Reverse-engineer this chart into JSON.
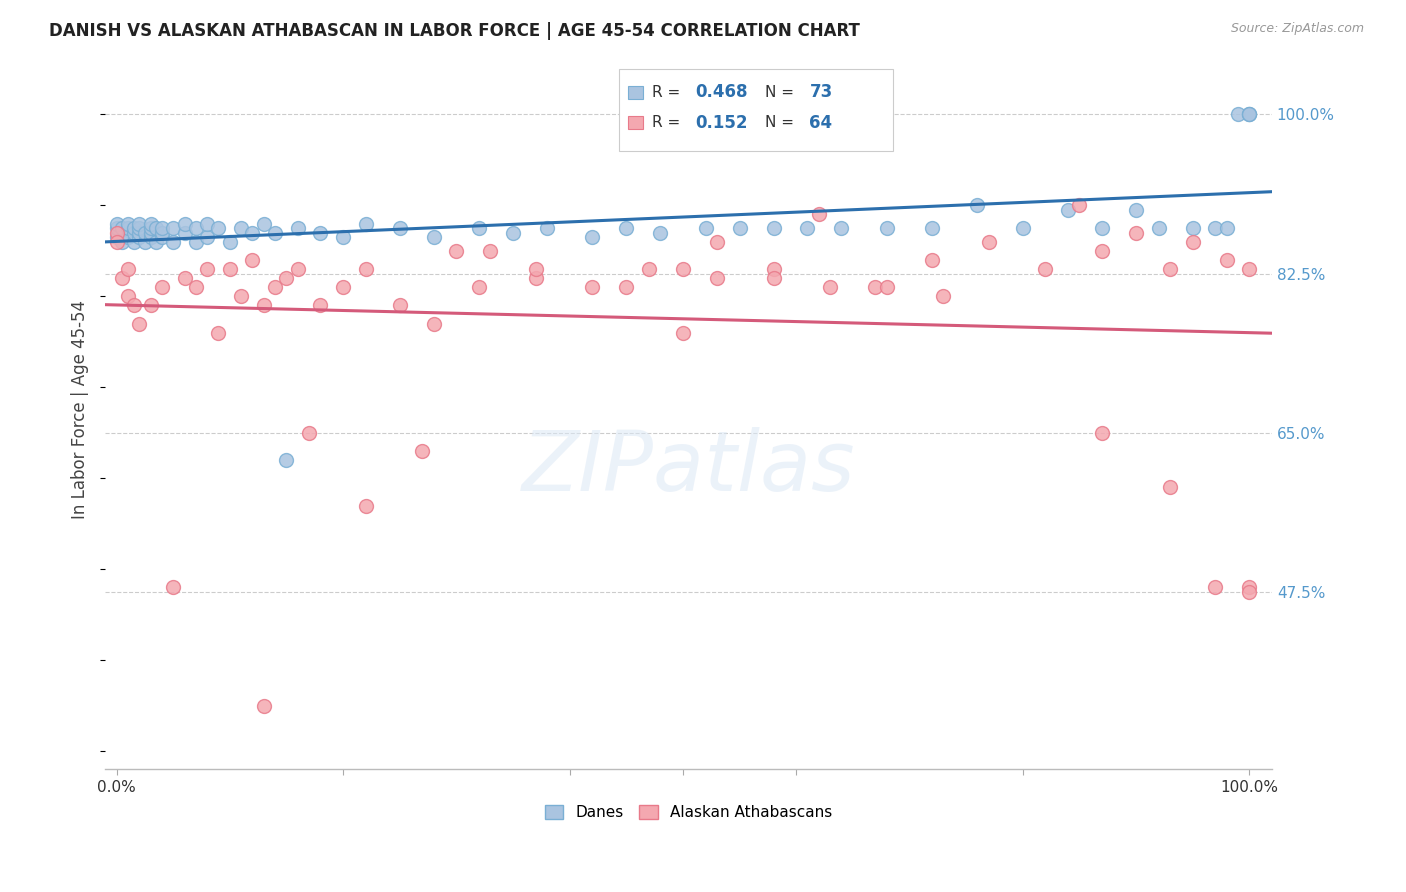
{
  "title": "DANISH VS ALASKAN ATHABASCAN IN LABOR FORCE | AGE 45-54 CORRELATION CHART",
  "source_text": "Source: ZipAtlas.com",
  "ylabel": "In Labor Force | Age 45-54",
  "xlim": [
    -0.01,
    1.02
  ],
  "ylim": [
    0.28,
    1.07
  ],
  "yticks": [
    0.475,
    0.65,
    0.825,
    1.0
  ],
  "ytick_labels": [
    "47.5%",
    "65.0%",
    "82.5%",
    "100.0%"
  ],
  "legend_r_blue": "0.468",
  "legend_n_blue": "73",
  "legend_r_pink": "0.152",
  "legend_n_pink": "64",
  "blue_color": "#aac4e0",
  "blue_edge": "#7aafd4",
  "pink_color": "#f4a8b0",
  "pink_edge": "#e87a8a",
  "trend_blue": "#2c6fad",
  "trend_pink": "#d45a7a",
  "watermark": "ZIPatlas",
  "danes_x": [
    0.0,
    0.0,
    0.0,
    0.005,
    0.005,
    0.01,
    0.01,
    0.01,
    0.015,
    0.015,
    0.015,
    0.02,
    0.02,
    0.02,
    0.02,
    0.025,
    0.025,
    0.03,
    0.03,
    0.03,
    0.03,
    0.035,
    0.035,
    0.04,
    0.04,
    0.04,
    0.05,
    0.05,
    0.06,
    0.06,
    0.07,
    0.07,
    0.08,
    0.08,
    0.09,
    0.1,
    0.11,
    0.12,
    0.13,
    0.14,
    0.15,
    0.16,
    0.18,
    0.2,
    0.22,
    0.25,
    0.28,
    0.32,
    0.35,
    0.38,
    0.42,
    0.45,
    0.48,
    0.52,
    0.55,
    0.58,
    0.61,
    0.64,
    0.68,
    0.72,
    0.76,
    0.8,
    0.84,
    0.87,
    0.9,
    0.92,
    0.95,
    0.97,
    0.98,
    0.99,
    1.0,
    1.0,
    1.0
  ],
  "danes_y": [
    0.865,
    0.875,
    0.88,
    0.86,
    0.875,
    0.865,
    0.875,
    0.88,
    0.86,
    0.87,
    0.875,
    0.865,
    0.87,
    0.875,
    0.88,
    0.86,
    0.87,
    0.865,
    0.87,
    0.875,
    0.88,
    0.86,
    0.875,
    0.865,
    0.87,
    0.875,
    0.86,
    0.875,
    0.87,
    0.88,
    0.86,
    0.875,
    0.865,
    0.88,
    0.875,
    0.86,
    0.875,
    0.87,
    0.88,
    0.87,
    0.62,
    0.875,
    0.87,
    0.865,
    0.88,
    0.875,
    0.865,
    0.875,
    0.87,
    0.875,
    0.865,
    0.875,
    0.87,
    0.875,
    0.875,
    0.875,
    0.875,
    0.875,
    0.875,
    0.875,
    0.9,
    0.875,
    0.895,
    0.875,
    0.895,
    0.875,
    0.875,
    0.875,
    0.875,
    1.0,
    1.0,
    1.0,
    1.0
  ],
  "athabascan_x": [
    0.0,
    0.0,
    0.005,
    0.01,
    0.01,
    0.015,
    0.02,
    0.03,
    0.04,
    0.05,
    0.06,
    0.07,
    0.08,
    0.09,
    0.1,
    0.11,
    0.12,
    0.13,
    0.14,
    0.15,
    0.16,
    0.18,
    0.2,
    0.22,
    0.25,
    0.28,
    0.3,
    0.33,
    0.37,
    0.42,
    0.47,
    0.5,
    0.53,
    0.58,
    0.62,
    0.67,
    0.72,
    0.77,
    0.82,
    0.85,
    0.87,
    0.9,
    0.93,
    0.95,
    0.97,
    0.98,
    1.0,
    1.0,
    1.0,
    0.13,
    0.17,
    0.22,
    0.27,
    0.32,
    0.37,
    0.45,
    0.5,
    0.53,
    0.58,
    0.63,
    0.68,
    0.73,
    0.87,
    0.93
  ],
  "athabascan_y": [
    0.87,
    0.86,
    0.82,
    0.8,
    0.83,
    0.79,
    0.77,
    0.79,
    0.81,
    0.48,
    0.82,
    0.81,
    0.83,
    0.76,
    0.83,
    0.8,
    0.84,
    0.79,
    0.81,
    0.82,
    0.83,
    0.79,
    0.81,
    0.83,
    0.79,
    0.77,
    0.85,
    0.85,
    0.82,
    0.81,
    0.83,
    0.76,
    0.86,
    0.83,
    0.89,
    0.81,
    0.84,
    0.86,
    0.83,
    0.9,
    0.85,
    0.87,
    0.83,
    0.86,
    0.48,
    0.84,
    0.83,
    0.48,
    0.475,
    0.35,
    0.65,
    0.57,
    0.63,
    0.81,
    0.83,
    0.81,
    0.83,
    0.82,
    0.82,
    0.81,
    0.81,
    0.8,
    0.65,
    0.59
  ]
}
